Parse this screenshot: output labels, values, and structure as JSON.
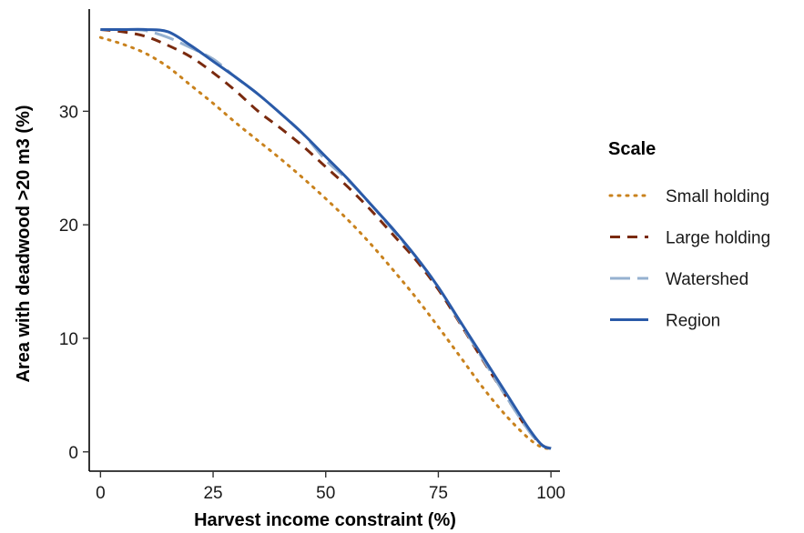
{
  "chart_data": {
    "type": "line",
    "title": "",
    "xlabel": "Harvest income constraint (%)",
    "ylabel": "Area with deadwood >20 m3 (%)",
    "xlim": [
      -2.5,
      102
    ],
    "ylim": [
      -1.7,
      39
    ],
    "x_ticks": [
      0,
      25,
      50,
      75,
      100
    ],
    "y_ticks": [
      0,
      10,
      20,
      30
    ],
    "grid": false,
    "legend": {
      "title": "Scale",
      "position": "right"
    },
    "x": [
      0,
      5,
      10,
      15,
      20,
      25,
      30,
      35,
      40,
      45,
      50,
      55,
      60,
      65,
      70,
      75,
      80,
      85,
      90,
      95,
      98,
      100
    ],
    "series": [
      {
        "name": "Small holding",
        "color": "#c9821d",
        "dash": "dotted",
        "values": [
          36.5,
          35.9,
          35.1,
          33.9,
          32.3,
          30.7,
          29.0,
          27.4,
          25.8,
          24.1,
          22.3,
          20.4,
          18.3,
          16.0,
          13.6,
          11.0,
          8.3,
          5.6,
          3.2,
          1.2,
          0.4,
          0.3
        ]
      },
      {
        "name": "Large holding",
        "color": "#7a2a0e",
        "dash": "dashed",
        "values": [
          37.2,
          37.0,
          36.6,
          35.8,
          34.8,
          33.4,
          31.8,
          30.0,
          28.5,
          26.9,
          25.1,
          23.3,
          21.3,
          19.1,
          16.9,
          14.3,
          11.2,
          8.0,
          4.9,
          1.9,
          0.6,
          0.3
        ]
      },
      {
        "name": "Watershed",
        "color": "#96b1d0",
        "dash": "longdash",
        "values": [
          37.2,
          37.2,
          37.1,
          36.5,
          35.6,
          34.6,
          33.0,
          31.5,
          29.8,
          28.0,
          25.7,
          23.9,
          21.8,
          19.5,
          17.2,
          14.5,
          11.3,
          8.1,
          4.9,
          1.9,
          0.6,
          0.3
        ]
      },
      {
        "name": "Region",
        "color": "#2a5aa8",
        "dash": "solid",
        "values": [
          37.2,
          37.2,
          37.2,
          37.0,
          35.8,
          34.4,
          33.0,
          31.5,
          29.8,
          28.0,
          26.0,
          24.0,
          21.8,
          19.6,
          17.2,
          14.5,
          11.4,
          8.3,
          5.2,
          2.1,
          0.6,
          0.3
        ]
      }
    ]
  }
}
